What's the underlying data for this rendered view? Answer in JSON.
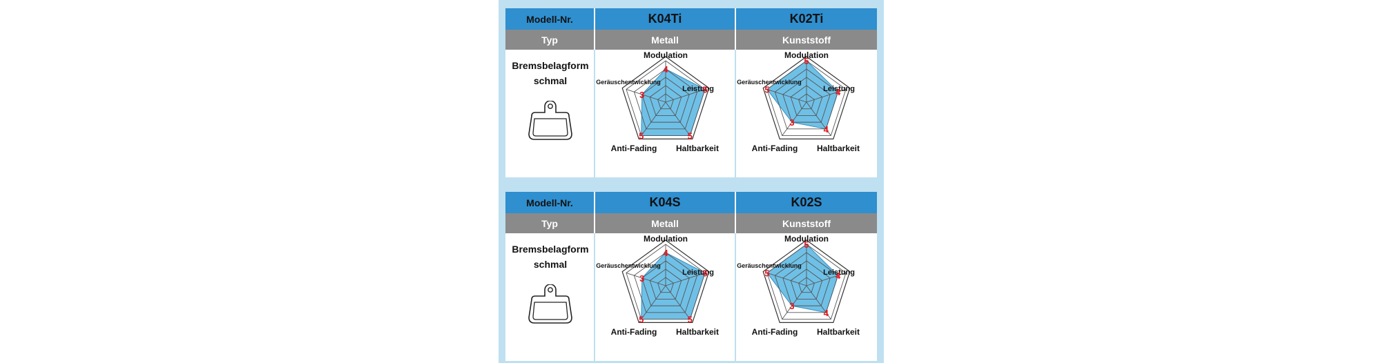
{
  "tables": [
    {
      "header": {
        "model_label": "Modell-Nr.",
        "models": [
          "K04Ti",
          "K02Ti"
        ]
      },
      "type_row": {
        "label": "Typ",
        "types": [
          "Metall",
          "Kunststoff"
        ]
      },
      "shape": {
        "line1": "Bremsbelagform",
        "line2": "schmal"
      }
    },
    {
      "header": {
        "model_label": "Modell-Nr.",
        "models": [
          "K04S",
          "K02S"
        ]
      },
      "type_row": {
        "label": "Typ",
        "types": [
          "Metall",
          "Kunststoff"
        ]
      },
      "shape": {
        "line1": "Bremsbelagform",
        "line2": "schmal"
      }
    }
  ],
  "colors": {
    "header_blue": "#2f8fcf",
    "type_gray": "#8a8a8a",
    "fill_blue": "#6fc0e6",
    "value_red": "#e8141a",
    "frame_bg": "#bfe0f0"
  },
  "icons": [
    "brake-pad-icon"
  ],
  "chart_data": [
    {
      "type": "radar",
      "title": "K04Ti",
      "axes": [
        "Modulation",
        "Leistung",
        "Haltbarkeit",
        "Anti-Fading",
        "Geräuschentwicklung"
      ],
      "values": [
        4,
        5,
        5,
        5,
        3
      ],
      "scale": [
        0,
        5
      ]
    },
    {
      "type": "radar",
      "title": "K02Ti",
      "axes": [
        "Modulation",
        "Leistung",
        "Haltbarkeit",
        "Anti-Fading",
        "Geräuschentwicklung"
      ],
      "values": [
        5,
        4,
        4,
        3,
        5
      ],
      "scale": [
        0,
        5
      ]
    },
    {
      "type": "radar",
      "title": "K04S",
      "axes": [
        "Modulation",
        "Leistung",
        "Haltbarkeit",
        "Anti-Fading",
        "Geräuschentwicklung"
      ],
      "values": [
        4,
        5,
        5,
        5,
        3
      ],
      "scale": [
        0,
        5
      ]
    },
    {
      "type": "radar",
      "title": "K02S",
      "axes": [
        "Modulation",
        "Leistung",
        "Haltbarkeit",
        "Anti-Fading",
        "Geräuschentwicklung"
      ],
      "values": [
        5,
        4,
        4,
        3,
        5
      ],
      "scale": [
        0,
        5
      ]
    }
  ]
}
